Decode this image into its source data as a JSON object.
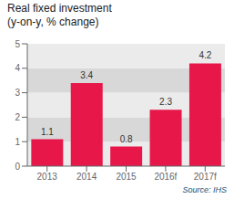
{
  "chart_data": {
    "type": "bar",
    "title": "Real fixed investment\n(y-on-y, % change)",
    "categories": [
      "2013",
      "2014",
      "2015",
      "2016f",
      "2017f"
    ],
    "values": [
      1.1,
      3.4,
      0.8,
      2.3,
      4.2
    ],
    "color": "#e8174a",
    "ylim": [
      0,
      5
    ],
    "yticks": [
      0,
      1,
      2,
      3,
      4,
      5
    ],
    "grid": true,
    "data_labels": true,
    "annotations": [
      "Source: IHS"
    ]
  }
}
